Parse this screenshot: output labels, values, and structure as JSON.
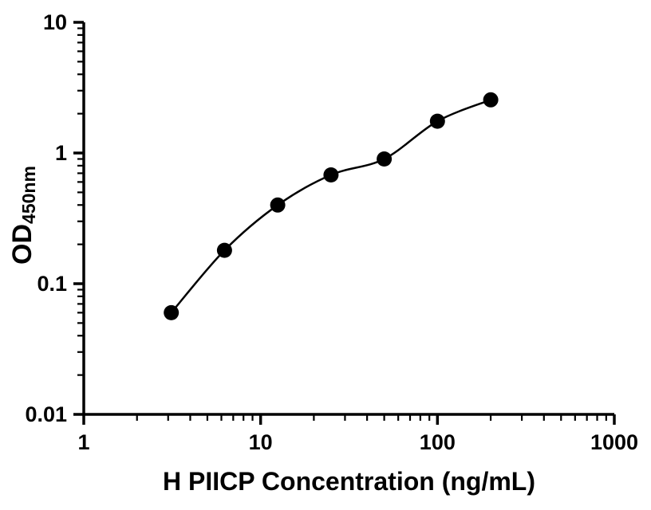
{
  "figure": {
    "background_color": "#ffffff"
  },
  "chart_data": {
    "type": "scatter",
    "title": "",
    "xlabel": "H PIICP Concentration (ng/mL)",
    "ylabel_main": "OD",
    "ylabel_sub": "450nm",
    "x_scale": "log10",
    "y_scale": "log10",
    "xlim": [
      1,
      1000
    ],
    "ylim": [
      0.01,
      10
    ],
    "x_ticks": [
      1,
      10,
      100,
      1000
    ],
    "x_tick_labels": [
      "1",
      "10",
      "100",
      "1000"
    ],
    "y_ticks": [
      0.01,
      0.1,
      1,
      10
    ],
    "y_tick_labels": [
      "0.01",
      "0.1",
      "1",
      "10"
    ],
    "x": [
      3.125,
      6.25,
      12.5,
      25,
      50,
      100,
      200
    ],
    "y": [
      0.06,
      0.18,
      0.4,
      0.68,
      0.9,
      1.75,
      2.55
    ],
    "curve": "smooth fitted standard curve through data points",
    "grid": false,
    "legend": false,
    "marker_color": "#000000",
    "line_color": "#000000",
    "axis_color": "#000000",
    "text_color": "#000000"
  }
}
